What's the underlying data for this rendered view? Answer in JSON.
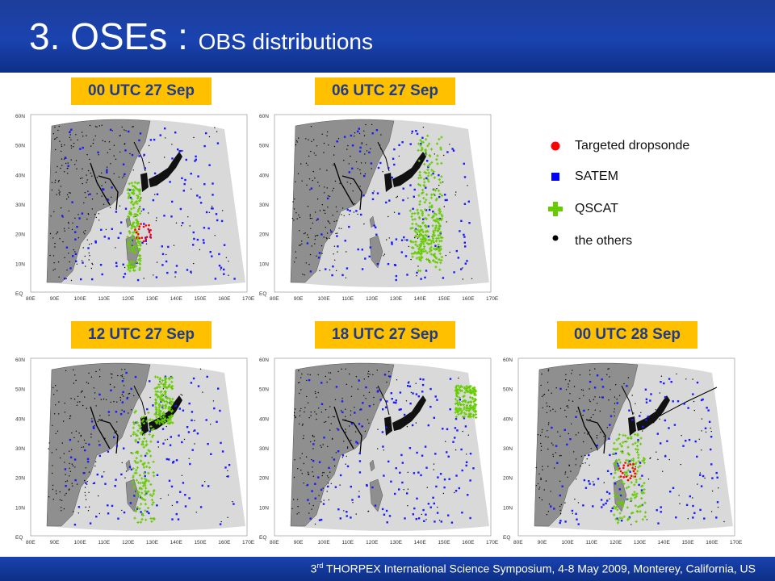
{
  "header": {
    "title_main": "3. OSEs",
    "title_sep": " : ",
    "title_sub": "OBS distributions"
  },
  "panels": [
    {
      "label": "00 UTC 27 Sep"
    },
    {
      "label": "06 UTC 27 Sep"
    },
    {
      "label": "12 UTC 27 Sep"
    },
    {
      "label": "18 UTC 27 Sep"
    },
    {
      "label": "00 UTC 28 Sep"
    }
  ],
  "map_axes": {
    "lat_labels": [
      "60N",
      "50N",
      "40N",
      "30N",
      "20N",
      "10N",
      "EQ"
    ],
    "lon_labels": [
      "80E",
      "90E",
      "100E",
      "110E",
      "120E",
      "130E",
      "140E",
      "150E",
      "160E",
      "170E"
    ]
  },
  "legend": [
    {
      "label": "Targeted dropsonde",
      "icon": "red-circle-icon",
      "color": "#ff0000"
    },
    {
      "label": "SATEM",
      "icon": "blue-square-icon",
      "color": "#0000ff"
    },
    {
      "label": "QSCAT",
      "icon": "green-plus-icon",
      "color": "#66cc00"
    },
    {
      "label": "the others",
      "icon": "black-dot-icon",
      "color": "#000000"
    }
  ],
  "footer": {
    "prefix": "3",
    "superscript": "rd",
    "text": " THORPEX International Science Symposium, 4-8 May 2009, Monterey, California, US"
  }
}
